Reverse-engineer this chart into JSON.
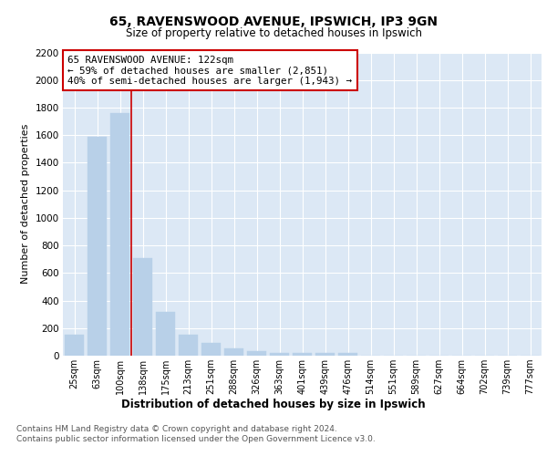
{
  "title": "65, RAVENSWOOD AVENUE, IPSWICH, IP3 9GN",
  "subtitle": "Size of property relative to detached houses in Ipswich",
  "xlabel": "Distribution of detached houses by size in Ipswich",
  "ylabel": "Number of detached properties",
  "categories": [
    "25sqm",
    "63sqm",
    "100sqm",
    "138sqm",
    "175sqm",
    "213sqm",
    "251sqm",
    "288sqm",
    "326sqm",
    "363sqm",
    "401sqm",
    "439sqm",
    "476sqm",
    "514sqm",
    "551sqm",
    "589sqm",
    "627sqm",
    "664sqm",
    "702sqm",
    "739sqm",
    "777sqm"
  ],
  "values": [
    155,
    1590,
    1760,
    710,
    320,
    155,
    90,
    55,
    30,
    20,
    20,
    20,
    20,
    0,
    0,
    0,
    0,
    0,
    0,
    0,
    0
  ],
  "bar_color": "#b8d0e8",
  "red_line_x": 2.5,
  "annotation_text": "65 RAVENSWOOD AVENUE: 122sqm\n← 59% of detached houses are smaller (2,851)\n40% of semi-detached houses are larger (1,943) →",
  "annotation_box_color": "#ffffff",
  "annotation_box_edge_color": "#cc0000",
  "ylim": [
    0,
    2200
  ],
  "yticks": [
    0,
    200,
    400,
    600,
    800,
    1000,
    1200,
    1400,
    1600,
    1800,
    2000,
    2200
  ],
  "footnote1": "Contains HM Land Registry data © Crown copyright and database right 2024.",
  "footnote2": "Contains public sector information licensed under the Open Government Licence v3.0.",
  "plot_bg_color": "#dce8f5"
}
